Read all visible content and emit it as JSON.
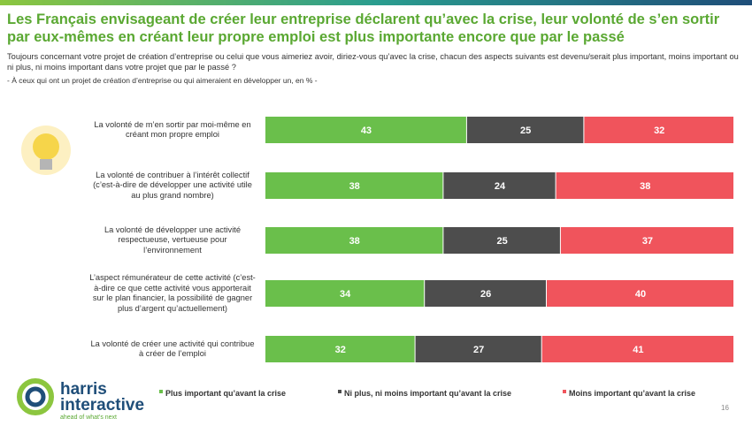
{
  "chart_data": {
    "type": "bar",
    "orientation": "horizontal",
    "stacked": true,
    "title": "Les Français envisageant de créer leur entreprise déclarent qu’avec la crise, leur volonté de s’en sortir par eux-mêmes en créant leur propre emploi est plus importante encore que par le passé",
    "subtitle": "Toujours concernant votre projet de création d’entreprise ou celui que vous aimeriez avoir, diriez-vous qu’avec la crise, chacun des aspects suivants est devenu/serait plus important, moins important ou ni plus, ni moins important dans votre projet que par le passé ?",
    "note": "- À ceux qui ont un projet de création d’entreprise ou qui aimeraient en développer un, en % -",
    "categories": [
      "La volonté de m’en sortir par moi-même en créant mon propre emploi",
      "La volonté de contribuer à l’intérêt collectif (c’est-à-dire de développer une activité utile au plus grand nombre)",
      "La volonté de développer une activité respectueuse, vertueuse pour l’environnement",
      "L’aspect rémunérateur de cette activité (c’est-à-dire ce que cette activité vous apporterait sur le plan financier, la possibilité de gagner plus d’argent qu’actuellement)",
      "La volonté de créer une activité qui contribue à créer de l’emploi"
    ],
    "series": [
      {
        "name": "Plus important qu’avant la crise",
        "color": "#6abf4b",
        "values": [
          43,
          38,
          38,
          34,
          32
        ]
      },
      {
        "name": "Ni plus, ni moins important qu’avant la crise",
        "color": "#4d4d4d",
        "values": [
          25,
          24,
          25,
          26,
          27
        ]
      },
      {
        "name": "Moins important qu’avant la crise",
        "color": "#f0545c",
        "values": [
          32,
          38,
          37,
          40,
          41
        ]
      }
    ],
    "xlim": [
      0,
      100
    ],
    "legend": "bottom"
  },
  "footer": {
    "brand": "harris",
    "brand2": "interactive",
    "tagline": "ahead of what's next",
    "page": "16"
  }
}
